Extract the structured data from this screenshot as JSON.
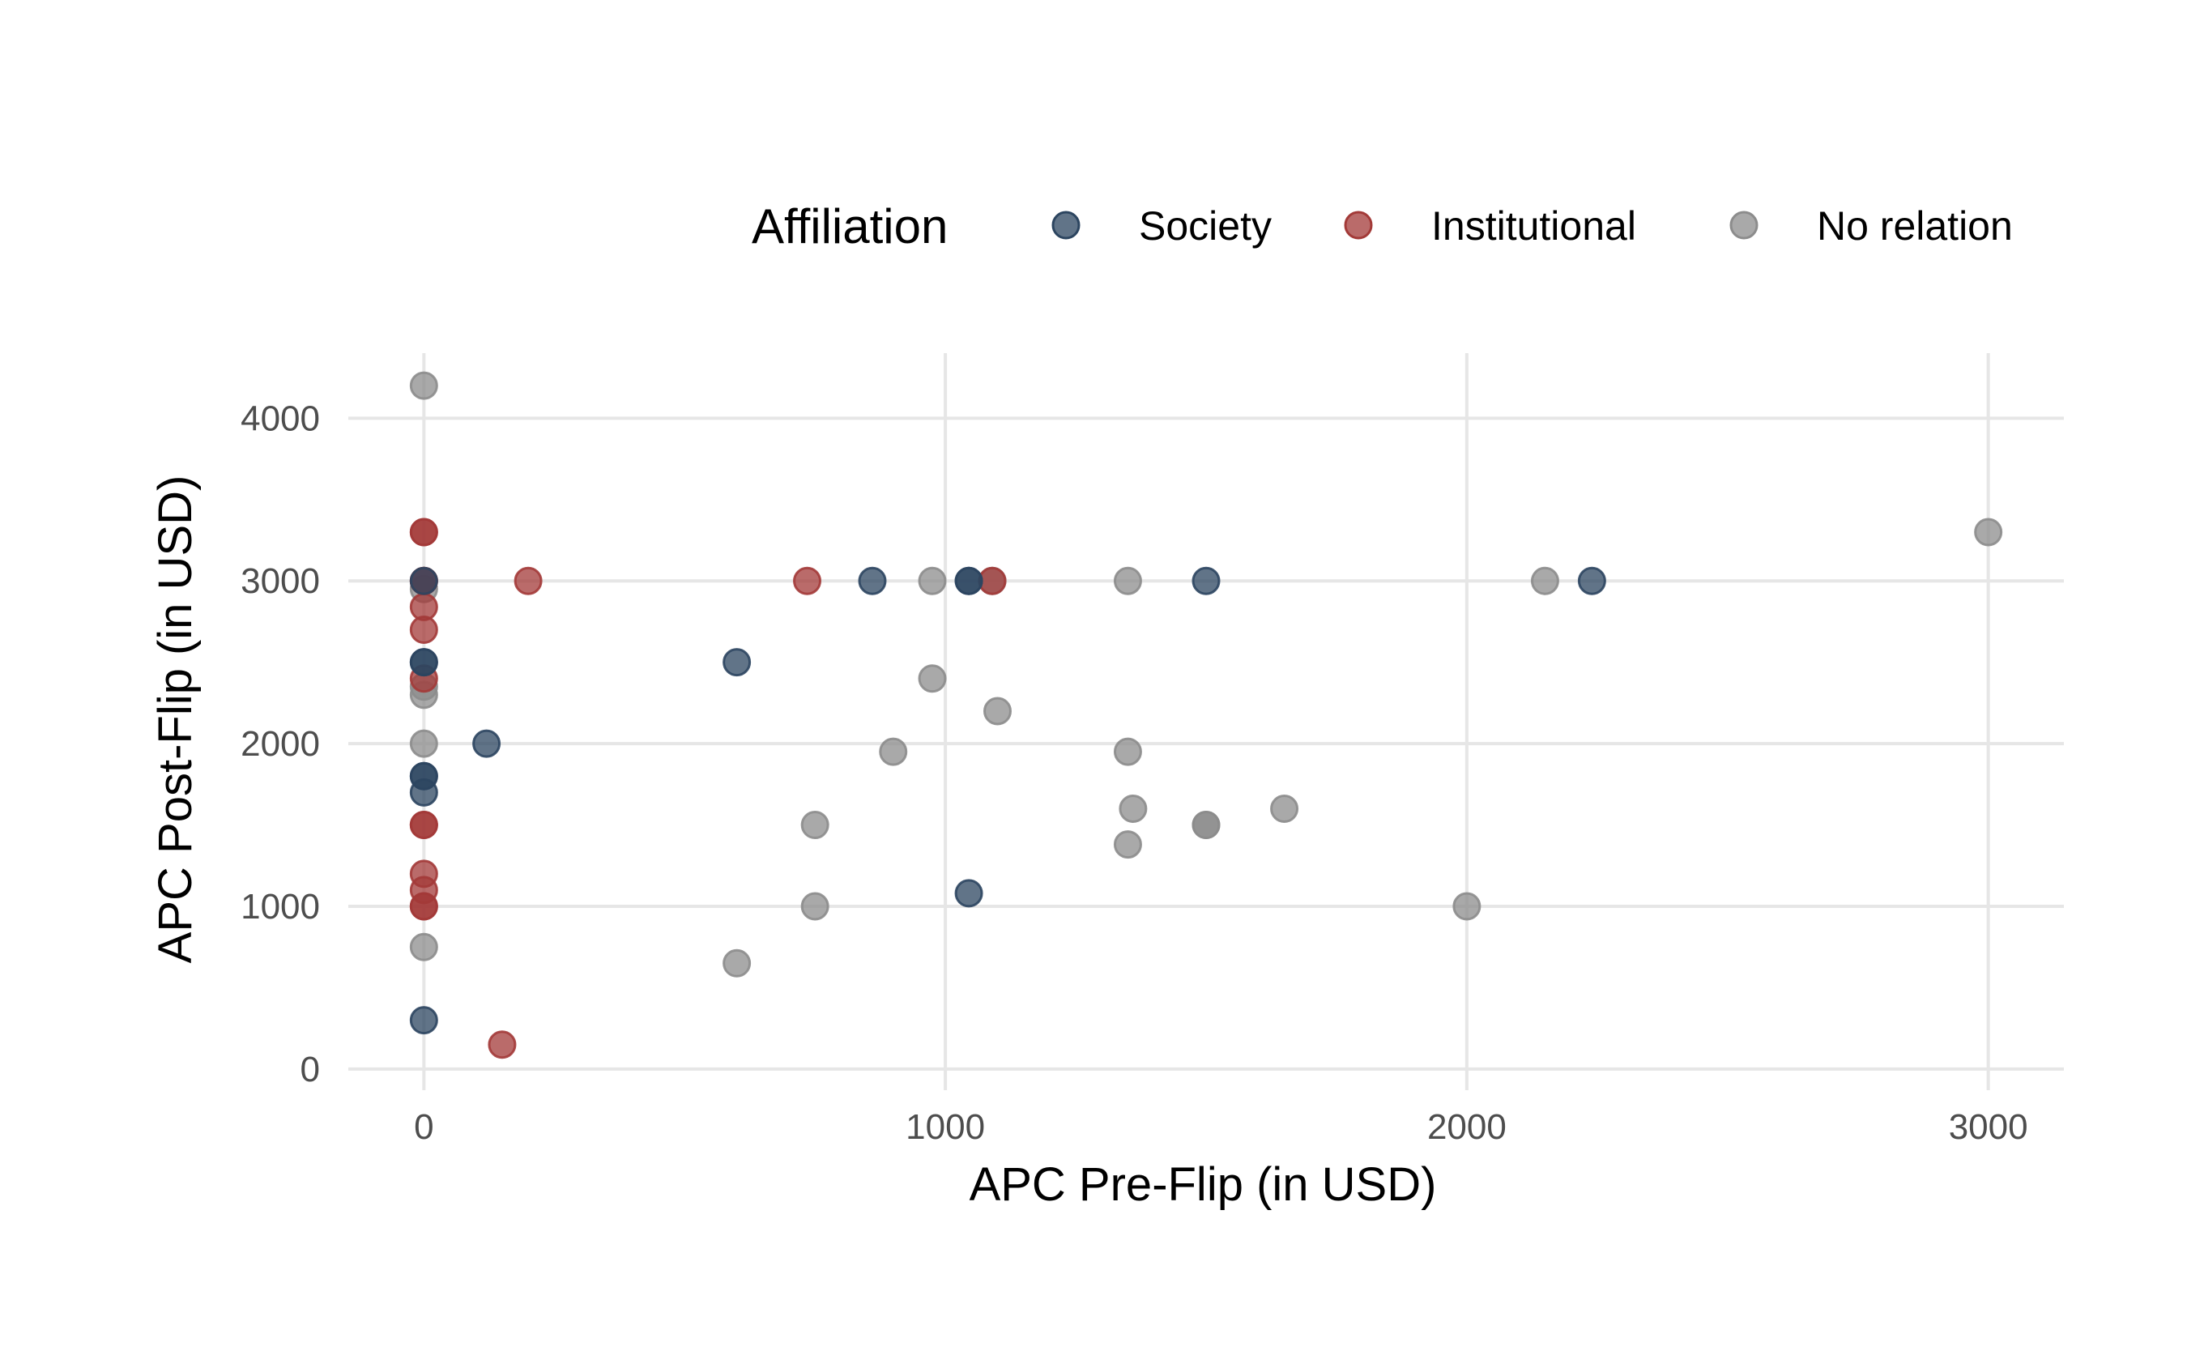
{
  "chart_data": {
    "type": "scatter",
    "title": "",
    "xlabel": "APC Pre-Flip (in USD)",
    "ylabel": "APC Post-Flip (in USD)",
    "xlim": [
      -145,
      3145
    ],
    "ylim": [
      -130,
      4400
    ],
    "xticks": [
      0,
      1000,
      2000,
      3000
    ],
    "yticks": [
      0,
      1000,
      2000,
      3000,
      4000
    ],
    "grid": true,
    "legend": {
      "title": "Affiliation",
      "position": "top-right"
    },
    "series": [
      {
        "name": "Society",
        "color": "#2c4560",
        "points": [
          [
            0,
            3000
          ],
          [
            0,
            2500
          ],
          [
            0,
            2500
          ],
          [
            0,
            1800
          ],
          [
            0,
            1800
          ],
          [
            0,
            1700
          ],
          [
            0,
            300
          ],
          [
            120,
            2000
          ],
          [
            600,
            2500
          ],
          [
            860,
            3000
          ],
          [
            1045,
            3000
          ],
          [
            1045,
            3000
          ],
          [
            1045,
            1080
          ],
          [
            1500,
            3000
          ],
          [
            2240,
            3000
          ]
        ]
      },
      {
        "name": "Institutional",
        "color": "#a33a38",
        "points": [
          [
            0,
            3300
          ],
          [
            0,
            3300
          ],
          [
            0,
            3000
          ],
          [
            0,
            3000
          ],
          [
            0,
            2840
          ],
          [
            0,
            2700
          ],
          [
            0,
            2400
          ],
          [
            0,
            1500
          ],
          [
            0,
            1500
          ],
          [
            0,
            1200
          ],
          [
            0,
            1100
          ],
          [
            0,
            1000
          ],
          [
            0,
            1000
          ],
          [
            150,
            150
          ],
          [
            200,
            3000
          ],
          [
            735,
            3000
          ],
          [
            1090,
            3000
          ]
        ]
      },
      {
        "name": "No relation",
        "color": "#8c8c8c",
        "points": [
          [
            0,
            4200
          ],
          [
            0,
            2950
          ],
          [
            0,
            2350
          ],
          [
            0,
            2300
          ],
          [
            0,
            2000
          ],
          [
            0,
            750
          ],
          [
            600,
            650
          ],
          [
            750,
            1500
          ],
          [
            750,
            1000
          ],
          [
            900,
            1950
          ],
          [
            975,
            3000
          ],
          [
            975,
            2400
          ],
          [
            1090,
            3000
          ],
          [
            1100,
            2200
          ],
          [
            1350,
            3000
          ],
          [
            1350,
            1950
          ],
          [
            1350,
            1380
          ],
          [
            1360,
            1600
          ],
          [
            1500,
            1500
          ],
          [
            1500,
            1500
          ],
          [
            1650,
            1600
          ],
          [
            2000,
            1000
          ],
          [
            2150,
            3000
          ],
          [
            3000,
            3300
          ]
        ]
      }
    ]
  }
}
